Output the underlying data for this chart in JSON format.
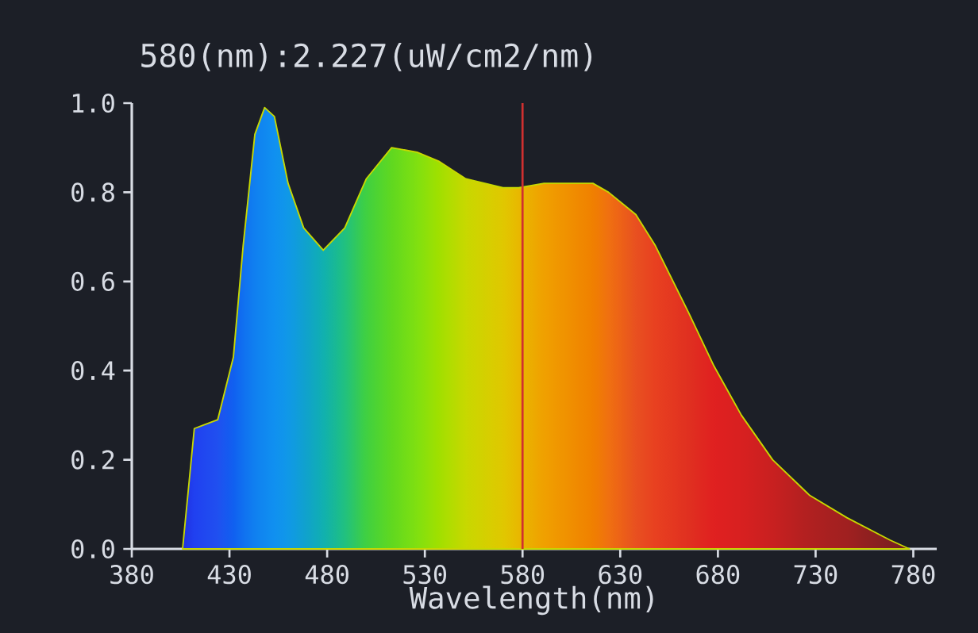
{
  "chart_data": {
    "type": "area",
    "title": "580(nm):2.227(uW/cm2/nm)",
    "xlabel": "Wavelength(nm)",
    "xlim": [
      380,
      792
    ],
    "ylim": [
      0,
      1.0
    ],
    "xticks": [
      380,
      430,
      480,
      530,
      580,
      630,
      680,
      730,
      780
    ],
    "yticks": [
      {
        "value": 0,
        "label": "0.0"
      },
      {
        "value": 0.2,
        "label": "0.2"
      },
      {
        "value": 0.4,
        "label": "0.4"
      },
      {
        "value": 0.6,
        "label": "0.6"
      },
      {
        "value": 0.8,
        "label": "0.8"
      },
      {
        "value": 1.0,
        "label": "1.0"
      }
    ],
    "x": [
      406,
      412,
      424,
      432,
      437,
      443,
      448,
      453,
      460,
      468,
      478,
      489,
      500,
      513,
      526,
      537,
      551,
      570,
      578,
      591,
      616,
      624,
      638,
      648,
      665,
      678,
      692,
      708,
      727,
      746,
      768,
      778
    ],
    "values": [
      0,
      0.27,
      0.29,
      0.43,
      0.68,
      0.93,
      0.99,
      0.97,
      0.82,
      0.72,
      0.67,
      0.72,
      0.83,
      0.9,
      0.89,
      0.87,
      0.83,
      0.81,
      0.81,
      0.82,
      0.82,
      0.8,
      0.75,
      0.68,
      0.53,
      0.41,
      0.3,
      0.2,
      0.12,
      0.07,
      0.02,
      0
    ],
    "colors": [
      "#2030e0",
      "#2040f0",
      "#2050f0",
      "#1060f0",
      "#1070f0",
      "#1080f0",
      "#1088f0",
      "#1090f0",
      "#1098e8",
      "#10a0d0",
      "#10b0b0",
      "#20c080",
      "#40d040",
      "#60d820",
      "#80e010",
      "#a0e000",
      "#c8d800",
      "#e0c800",
      "#e8b800",
      "#f0a000",
      "#f08000",
      "#f07010",
      "#e85020",
      "#e84020",
      "#e03020",
      "#e02020",
      "#d82020",
      "#c82020",
      "#b02020",
      "#a02020",
      "#802020",
      "#702020"
    ],
    "ref_lines": [
      {
        "axis": "x",
        "value": 580,
        "color": "#d03030"
      }
    ]
  }
}
